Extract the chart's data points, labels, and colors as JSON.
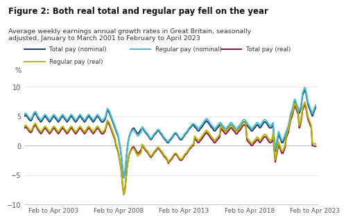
{
  "title": "Figure 2: Both real total and regular pay fell on the year",
  "subtitle": "Average weekly earnings annual growth rates in Great Britain, seasonally\nadjusted, January to March 2001 to February to April 2023",
  "ylabel": "%",
  "background_color": "#ffffff",
  "legend": [
    {
      "label": "Total pay (nominal)",
      "color": "#1f3f6e",
      "lw": 1.5
    },
    {
      "label": "Regular pay (nominal)",
      "color": "#4bbfcf",
      "lw": 1.5
    },
    {
      "label": "Total pay (real)",
      "color": "#8b1a4a",
      "lw": 1.5
    },
    {
      "label": "Regular pay (real)",
      "color": "#b5b800",
      "lw": 1.5
    }
  ],
  "xlim_start": 2001.0,
  "xlim_end": 2023.5,
  "ylim": [
    -10,
    12
  ],
  "yticks": [
    -10,
    -5,
    0,
    5,
    10
  ],
  "xtick_labels": [
    "Feb to Apr 2003",
    "Feb to Apr 2008",
    "Feb to Apr 2013",
    "Feb to Apr 2018",
    "Feb to Apr 2023"
  ],
  "xtick_positions": [
    2003.25,
    2008.25,
    2013.25,
    2018.25,
    2023.25
  ]
}
